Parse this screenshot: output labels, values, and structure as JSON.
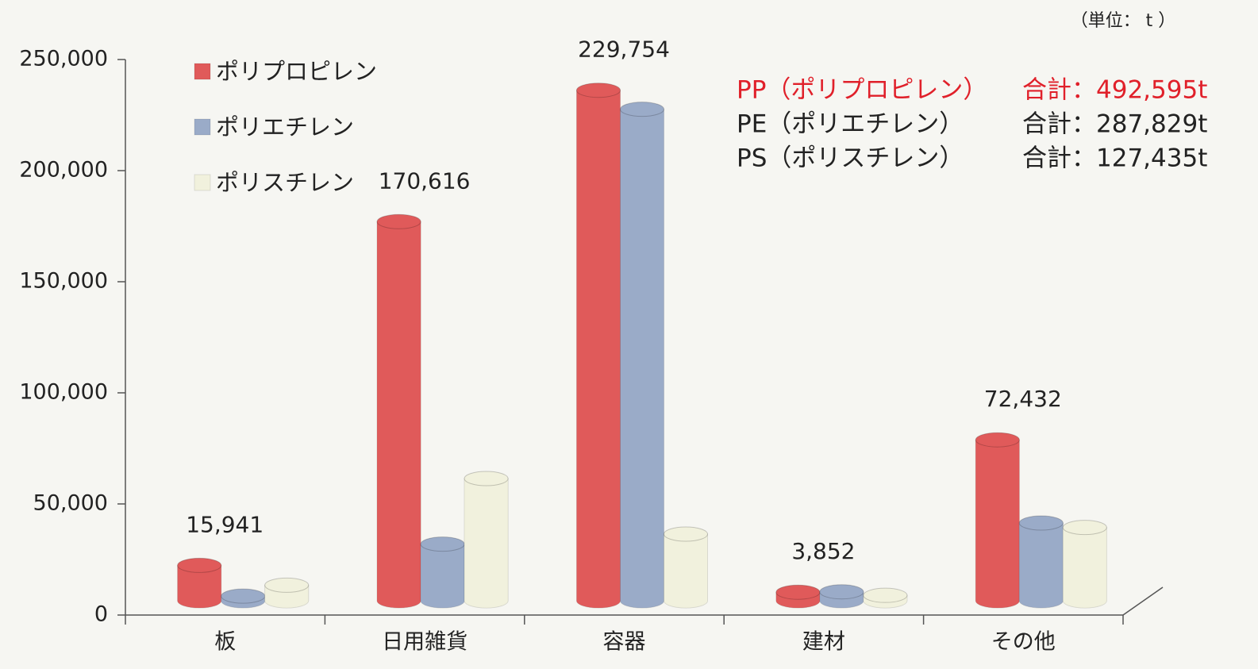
{
  "chart_data": {
    "type": "bar",
    "unit": "（単位： t ）",
    "categories": [
      "板",
      "日用雑貨",
      "容器",
      "建材",
      "その他"
    ],
    "series": [
      {
        "name": "ポリプロピレン",
        "color": "#e05a5a",
        "values": [
          15941,
          170616,
          229754,
          3852,
          72432
        ],
        "value_labels": [
          "15,941",
          "170,616",
          "229,754",
          "3,852",
          "72,432"
        ]
      },
      {
        "name": "ポリエチレン",
        "color": "#9aabc8",
        "values": [
          2100,
          25500,
          221200,
          4029,
          35000
        ]
      },
      {
        "name": "ポリスチレン",
        "color": "#f1f1dd",
        "values": [
          7000,
          55000,
          30000,
          2435,
          33000
        ]
      }
    ],
    "totals": [
      {
        "name": "PP（ポリプロピレン）",
        "total": "合計：492,595t",
        "color": "#e0202a"
      },
      {
        "name": "PE（ポリエチレン）",
        "total": "合計：287,829t",
        "color": "#222222"
      },
      {
        "name": "PS（ポリスチレン）",
        "total": "合計：127,435t",
        "color": "#222222"
      }
    ],
    "ylim": [
      0,
      250000
    ],
    "yticks": [
      {
        "value": 0,
        "label": "0"
      },
      {
        "value": 50000,
        "label": "50,000"
      },
      {
        "value": 100000,
        "label": "100,000"
      },
      {
        "value": 150000,
        "label": "150,000"
      },
      {
        "value": 200000,
        "label": "200,000"
      },
      {
        "value": 250000,
        "label": "250,000"
      }
    ],
    "legend": "top-left"
  }
}
